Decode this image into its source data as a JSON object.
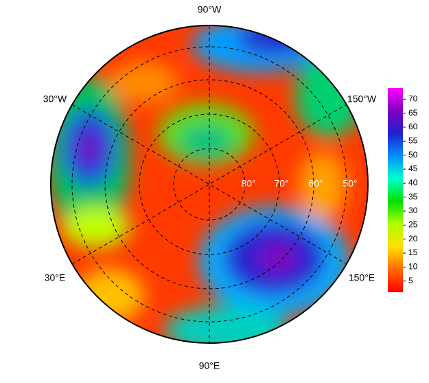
{
  "map": {
    "longitude_labels": [
      "90°W",
      "30°W",
      "150°W",
      "30°E",
      "150°E",
      "90°E"
    ],
    "latitude_labels": [
      "80°",
      "70°",
      "60°",
      "50°"
    ],
    "colorbar": {
      "lim": [
        1,
        74
      ],
      "ticks": [
        5,
        10,
        15,
        20,
        25,
        30,
        35,
        40,
        45,
        50,
        55,
        60,
        65,
        70
      ],
      "colors": [
        "#ff0000",
        "#ff6a00",
        "#ffe000",
        "#b0ff00",
        "#00e000",
        "#00ffc8",
        "#0090ff",
        "#2020d0",
        "#8000c0",
        "#ff00ff"
      ]
    }
  }
}
